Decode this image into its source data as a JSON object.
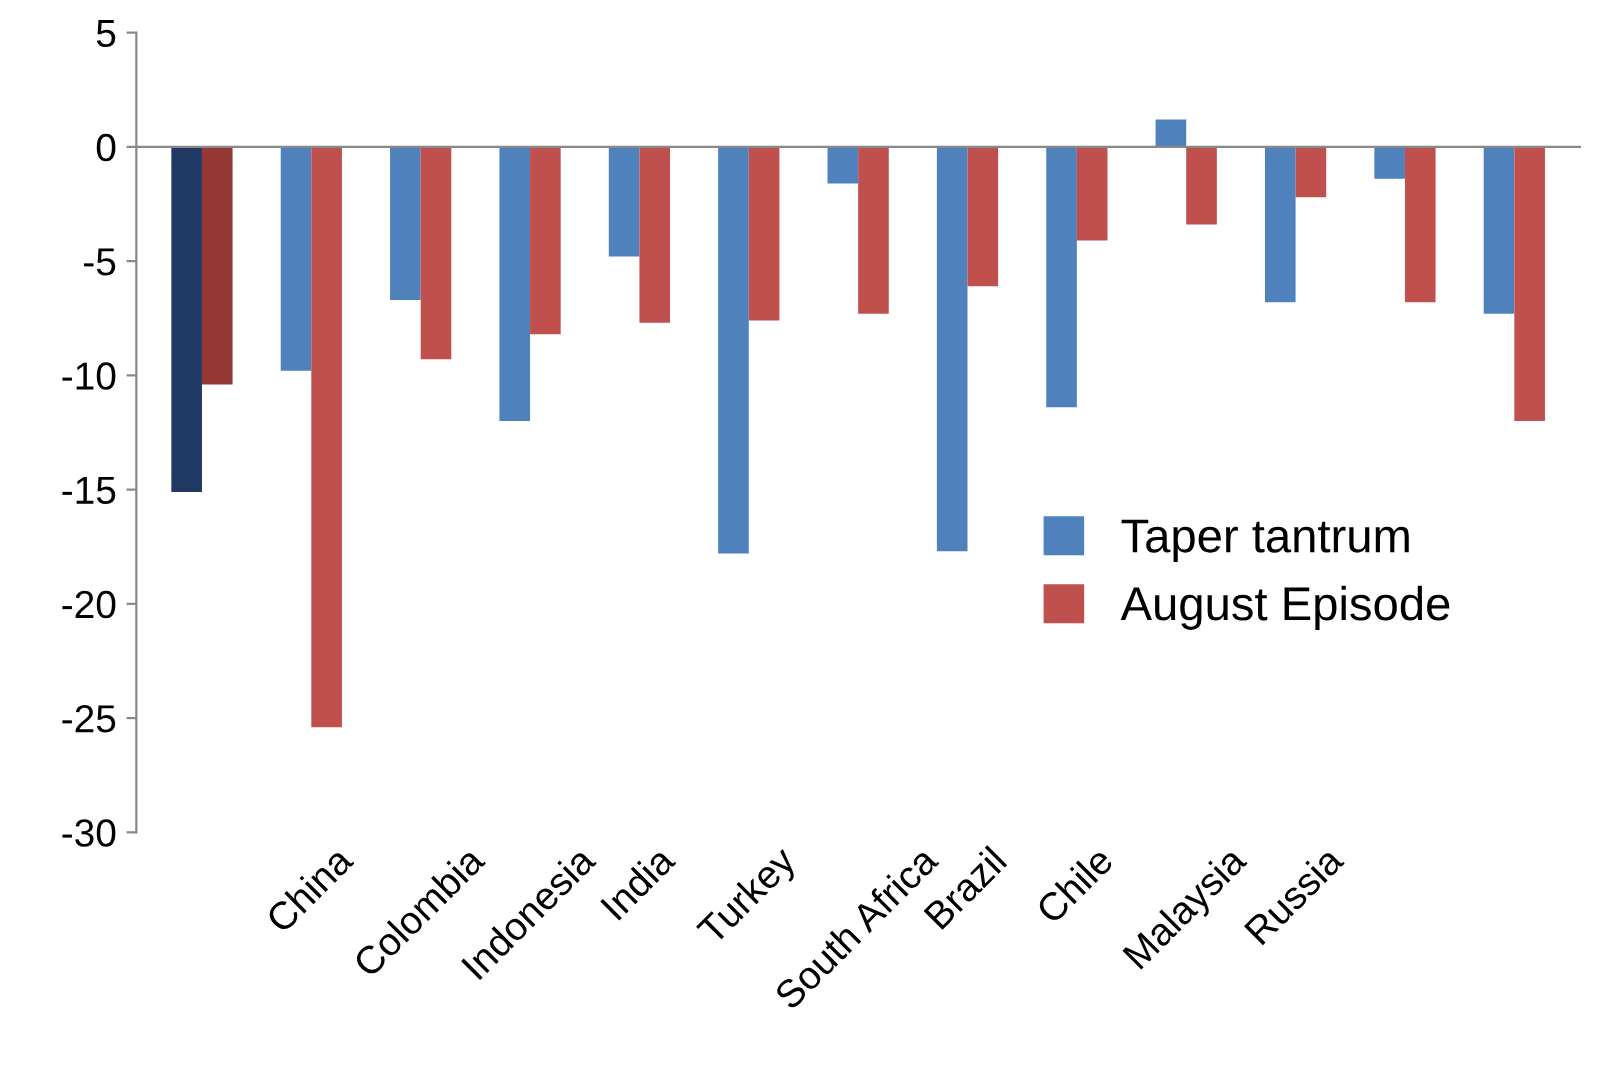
{
  "chart_data": {
    "type": "bar",
    "categories": [
      null,
      "China",
      "Colombia",
      "Indonesia",
      "India",
      "Turkey",
      "South Africa",
      "Brazil",
      "Chile",
      "Malaysia",
      "Russia",
      null,
      null
    ],
    "series": [
      {
        "name": "Taper tantrum",
        "color": "#4f81bd",
        "colors": [
          "#1f3864",
          "#4f81bd",
          "#4f81bd",
          "#4f81bd",
          "#4f81bd",
          "#4f81bd",
          "#4f81bd",
          "#4f81bd",
          "#4f81bd",
          "#4f81bd",
          "#4f81bd",
          "#4f81bd",
          "#4f81bd"
        ],
        "values": [
          -15.1,
          -9.8,
          -6.7,
          -12.0,
          -4.8,
          -17.8,
          -1.6,
          -17.7,
          -11.4,
          1.2,
          -6.8,
          -1.4,
          -7.3
        ]
      },
      {
        "name": "August Episode",
        "color": "#c0504d",
        "colors": [
          "#953735",
          "#c0504d",
          "#c0504d",
          "#c0504d",
          "#c0504d",
          "#c0504d",
          "#c0504d",
          "#c0504d",
          "#c0504d",
          "#c0504d",
          "#c0504d",
          "#c0504d",
          "#c0504d"
        ],
        "values": [
          -10.4,
          -25.4,
          -9.3,
          -8.2,
          -7.7,
          -7.6,
          -7.3,
          -6.1,
          -4.1,
          -3.4,
          -2.2,
          -6.8,
          -12.0
        ]
      }
    ],
    "ylim": [
      -30,
      5
    ],
    "yticks": [
      -30,
      -25,
      -20,
      -15,
      -10,
      -5,
      0,
      5
    ],
    "legend": "right"
  }
}
